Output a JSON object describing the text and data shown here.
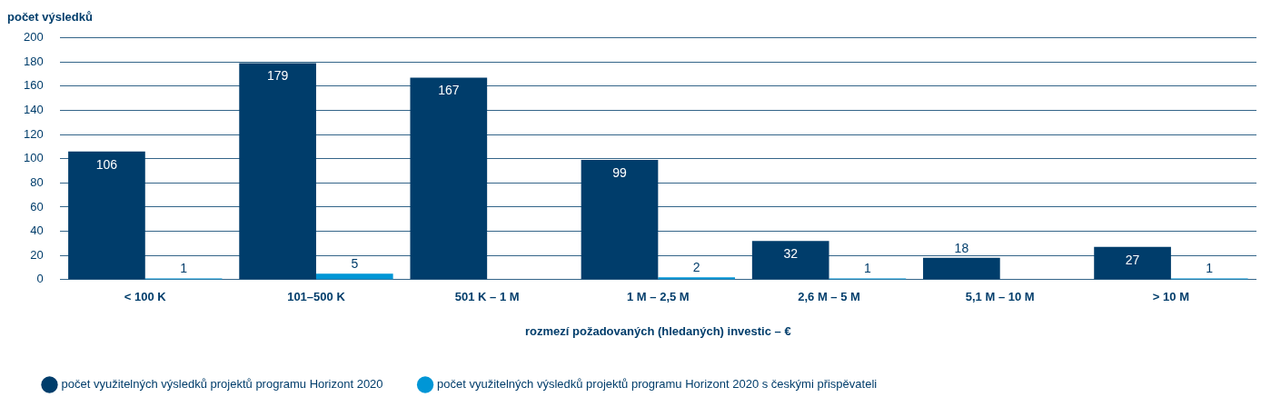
{
  "chart_data": {
    "type": "bar",
    "ylabel": "počet výsledků",
    "xlabel": "rozmezí požadovaných (hledaných) investic – €",
    "categories": [
      "< 100 K",
      "101–500 K",
      "501 K – 1 M",
      "1 M – 2,5 M",
      "2,6 M – 5 M",
      "5,1 M – 10 M",
      "> 10 M"
    ],
    "series": [
      {
        "name": "počet využitelných výsledků projektů programu Horizont 2020",
        "color": "#003d6b",
        "values": [
          106,
          179,
          167,
          99,
          32,
          18,
          27
        ]
      },
      {
        "name": "počet využitelných výsledků projektů programu Horizont 2020 s českými přispěvateli",
        "color": "#0096d6",
        "values": [
          1,
          5,
          null,
          2,
          1,
          null,
          1
        ]
      }
    ],
    "ylim": [
      0,
      200
    ],
    "yticks": [
      0,
      20,
      40,
      60,
      80,
      100,
      120,
      140,
      160,
      180,
      200
    ],
    "grid": "y",
    "legend": "bottom left",
    "data_labels": true
  }
}
